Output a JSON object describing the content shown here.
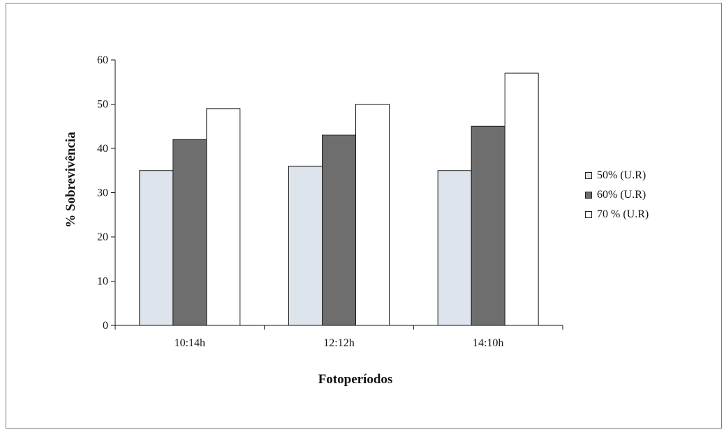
{
  "chart_data": {
    "type": "bar",
    "categories": [
      "10:14h",
      "12:12h",
      "14:10h"
    ],
    "series": [
      {
        "name": "50% (U.R)",
        "values": [
          35,
          36,
          35
        ],
        "color": "#dde4ec"
      },
      {
        "name": "60% (U.R)",
        "values": [
          42,
          43,
          45
        ],
        "color": "#6e6e6e"
      },
      {
        "name": "70 % (U.R)",
        "values": [
          49,
          50,
          57
        ],
        "color": "#ffffff"
      }
    ],
    "xlabel": "Fotoperíodos",
    "ylabel": "% Sobrevivência",
    "ylim": [
      0,
      60
    ],
    "yticks": [
      "0",
      "10",
      "20",
      "30",
      "40",
      "50",
      "60"
    ],
    "grid": false,
    "legend_position": "right"
  }
}
